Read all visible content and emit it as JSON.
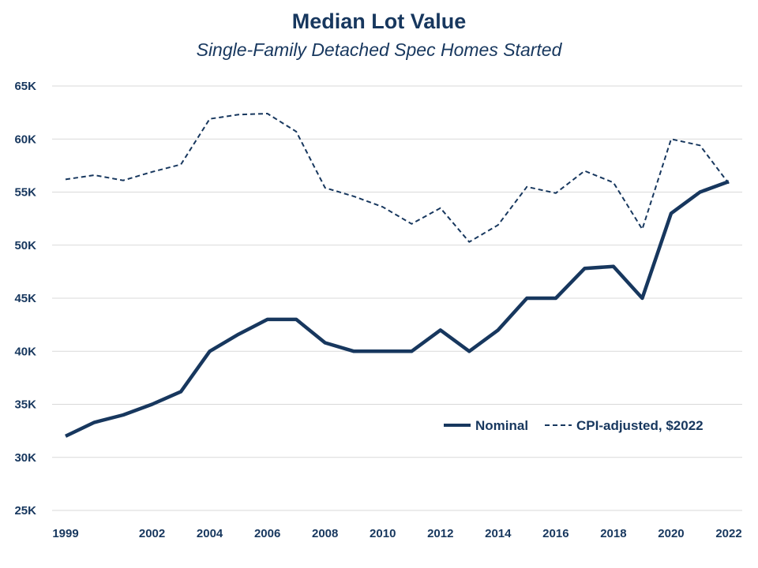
{
  "chart_data": {
    "type": "line",
    "title": "Median Lot Value",
    "subtitle": "Single-Family Detached Spec Homes Started",
    "xlabel": "",
    "ylabel": "",
    "x": [
      1999,
      2000,
      2001,
      2002,
      2003,
      2004,
      2005,
      2006,
      2007,
      2008,
      2009,
      2010,
      2011,
      2012,
      2013,
      2014,
      2015,
      2016,
      2017,
      2018,
      2019,
      2020,
      2021,
      2022
    ],
    "x_ticks": [
      "1999",
      "2002",
      "2004",
      "2006",
      "2008",
      "2010",
      "2012",
      "2014",
      "2016",
      "2018",
      "2020",
      "2022"
    ],
    "x_tick_values": [
      1999,
      2002,
      2004,
      2006,
      2008,
      2010,
      2012,
      2014,
      2016,
      2018,
      2020,
      2022
    ],
    "ylim": [
      25000,
      65000
    ],
    "y_ticks": [
      "25K",
      "30K",
      "35K",
      "40K",
      "45K",
      "50K",
      "55K",
      "60K",
      "65K"
    ],
    "y_tick_values": [
      25000,
      30000,
      35000,
      40000,
      45000,
      50000,
      55000,
      60000,
      65000
    ],
    "grid": "horizontal",
    "legend_position": "bottom-right",
    "series": [
      {
        "name": "Nominal",
        "style": "solid",
        "color": "#17375e",
        "values": [
          32000,
          33300,
          34000,
          35000,
          36200,
          40000,
          41600,
          43000,
          43000,
          40800,
          40000,
          40000,
          40000,
          42000,
          40000,
          42000,
          45000,
          45000,
          47800,
          48000,
          45000,
          53000,
          55000,
          56000
        ]
      },
      {
        "name": "CPI-adjusted, $2022",
        "style": "dashed",
        "color": "#17375e",
        "values": [
          56200,
          56600,
          56100,
          56900,
          57600,
          61900,
          62300,
          62400,
          60700,
          55400,
          54600,
          53600,
          52000,
          53500,
          50300,
          51900,
          55500,
          54900,
          57000,
          55900,
          51500,
          60000,
          59400,
          55800
        ]
      }
    ]
  }
}
